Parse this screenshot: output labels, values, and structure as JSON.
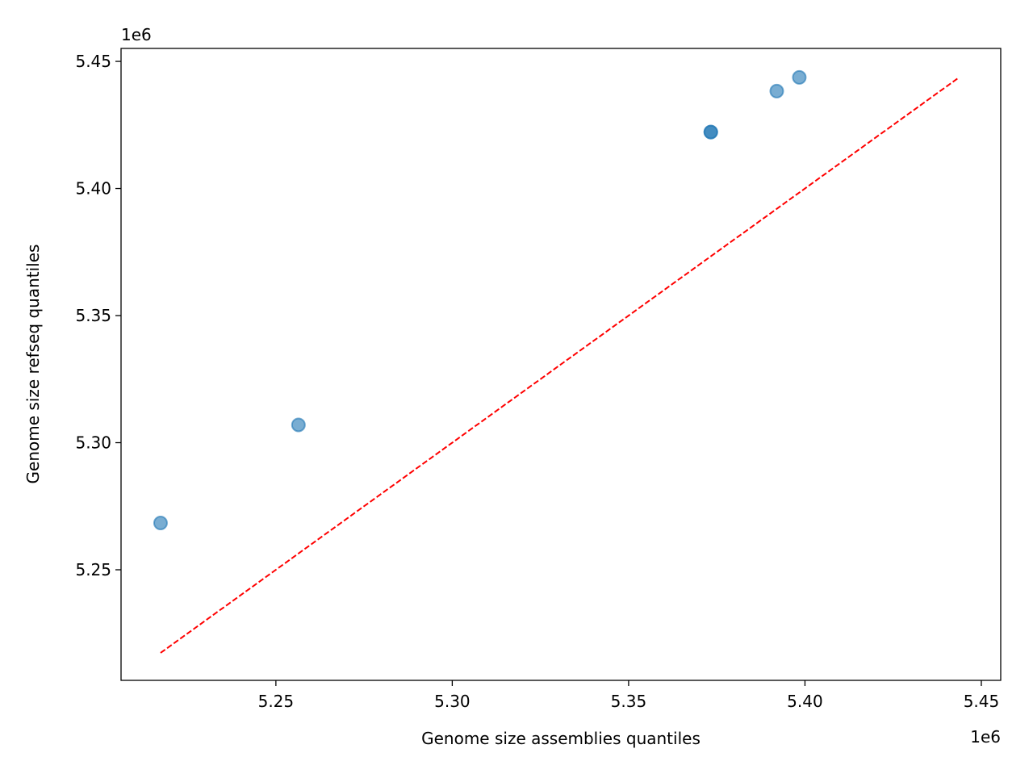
{
  "chart_data": {
    "type": "scatter",
    "title": "",
    "xlabel": "Genome size assemblies quantiles",
    "ylabel": "Genome size refseq quantiles",
    "x_offset_label": "1e6",
    "y_offset_label": "1e6",
    "xlim": [
      5.2061,
      5.4555
    ],
    "ylim": [
      5.2065,
      5.4551
    ],
    "xticks": [
      "5.25",
      "5.30",
      "5.35",
      "5.40",
      "5.45"
    ],
    "yticks": [
      "5.25",
      "5.30",
      "5.35",
      "5.40",
      "5.45"
    ],
    "grid": false,
    "series": [
      {
        "type": "scatter",
        "color": "#1f77b4",
        "alpha": 0.6,
        "x": [
          5.2173,
          5.2564,
          5.3733,
          5.3733,
          5.392,
          5.3984
        ],
        "y": [
          5.2684,
          5.307,
          5.4222,
          5.4222,
          5.4383,
          5.4437
        ]
      },
      {
        "type": "line",
        "style": "dashed",
        "color": "#ff0000",
        "x": [
          5.2173,
          5.4437
        ],
        "y": [
          5.2173,
          5.4437
        ]
      }
    ]
  }
}
